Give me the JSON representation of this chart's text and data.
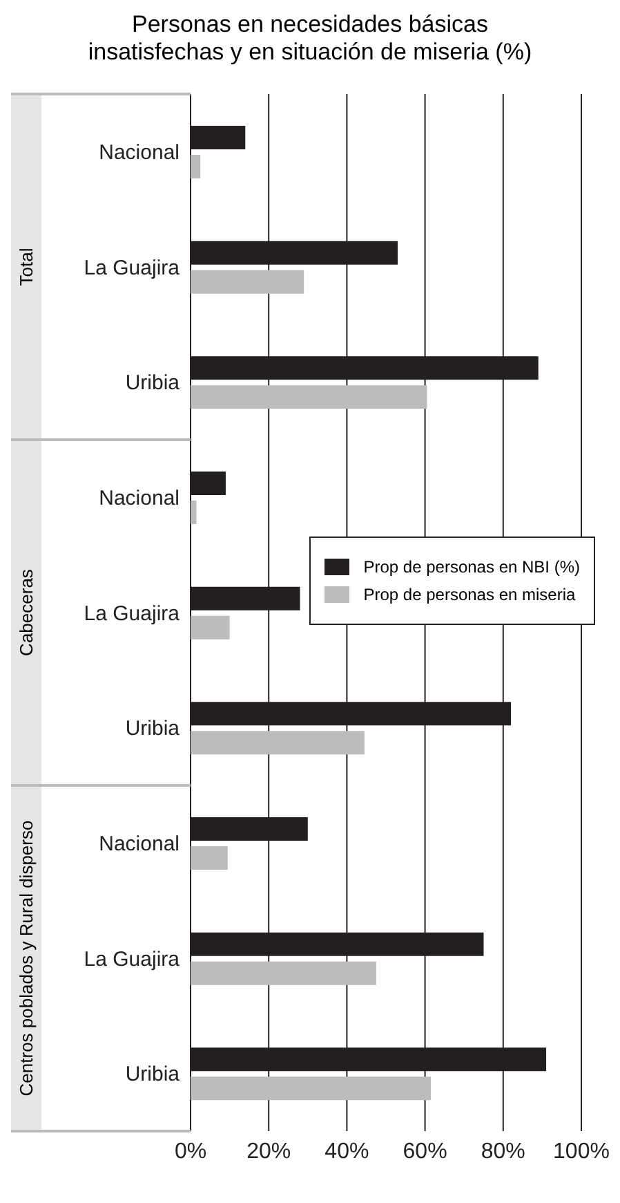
{
  "chart_data": {
    "type": "bar",
    "orientation": "horizontal",
    "title": "Personas en necesidades básicas insatisfechas y en situación de miseria (%)",
    "categories": [
      "Nacional",
      "La Guajira",
      "Uribia",
      "Nacional",
      "La Guajira",
      "Uribia",
      "Nacional",
      "La Guajira",
      "Uribia"
    ],
    "series": [
      {
        "name": "Prop de personas en NBI (%)",
        "color": "#231f20",
        "values": [
          14,
          53,
          89,
          9,
          28,
          82,
          30,
          75,
          91
        ]
      },
      {
        "name": "Prop de personas en miseria",
        "color": "#bcbcbc",
        "values": [
          2.5,
          29,
          60.5,
          1.5,
          10,
          44.5,
          9.5,
          47.5,
          61.5
        ]
      }
    ],
    "xlim": [
      0,
      100
    ],
    "xticks": [
      {
        "value": 0,
        "label": "0%"
      },
      {
        "value": 20,
        "label": "20%"
      },
      {
        "value": 40,
        "label": "40%"
      },
      {
        "value": 60,
        "label": "60%"
      },
      {
        "value": 80,
        "label": "80%"
      },
      {
        "value": 100,
        "label": "100%"
      }
    ],
    "annotations": [
      "Total",
      "Cabeceras",
      "Centros poblados y Rural disperso"
    ],
    "grid": "x",
    "legend": "right"
  }
}
